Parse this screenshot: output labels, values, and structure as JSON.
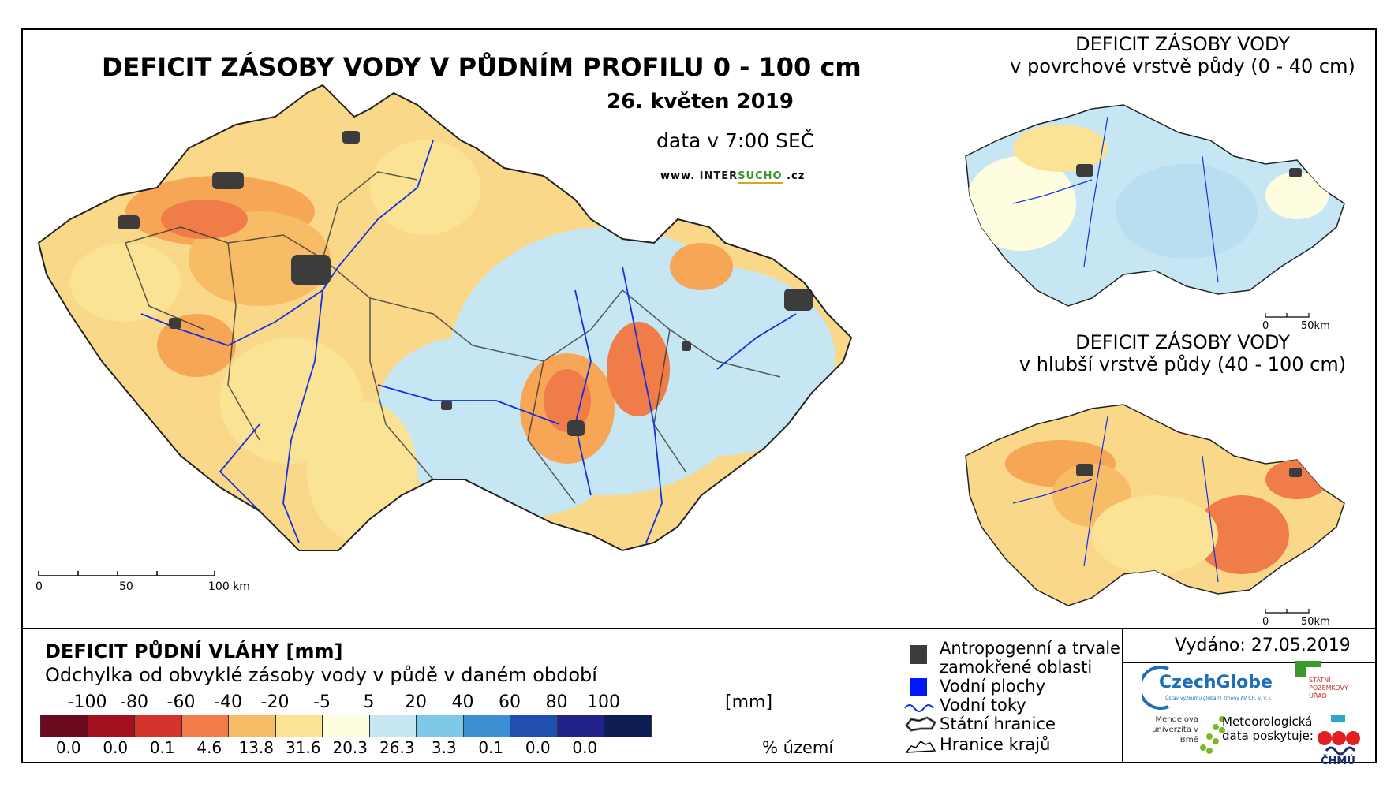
{
  "main_map": {
    "title": "DEFICIT ZÁSOBY VODY V PŮDNÍM PROFILU 0 - 100 cm",
    "date": "26. květen 2019",
    "time": "data v 7:00 SEČ",
    "website_prefix": "www.",
    "website_mid": "INTER",
    "website_highlight": "SUCHO",
    "website_suffix": ".cz",
    "scale": [
      "0",
      "50",
      "100 km"
    ]
  },
  "top_right_map": {
    "title": "DEFICIT ZÁSOBY VODY",
    "subtitle": "v povrchové vrstvě půdy (0 - 40 cm)",
    "scale": [
      "0",
      "50km"
    ]
  },
  "bottom_right_map": {
    "title": "DEFICIT ZÁSOBY VODY",
    "subtitle": "v hlubší vrstvě půdy (40 - 100 cm)",
    "scale": [
      "0",
      "50km"
    ]
  },
  "legend": {
    "title": "DEFICIT PŮDNÍ VLÁHY [mm]",
    "subtitle": "Odchylka od obvyklé zásoby vody v půdě v daném období",
    "unit": "[mm]",
    "ticks": [
      "-100",
      "-80",
      "-60",
      "-40",
      "-20",
      "-5",
      "5",
      "20",
      "40",
      "60",
      "80",
      "100"
    ],
    "colors": [
      "#6b0a1e",
      "#a3101f",
      "#d3332b",
      "#f07c4a",
      "#f8bc66",
      "#fbe396",
      "#fffde0",
      "#c6e6f3",
      "#7ec8e8",
      "#3d8fd3",
      "#1f4fb0",
      "#22228a",
      "#0e1e54"
    ],
    "percentages": [
      "0.0",
      "0.0",
      "0.1",
      "4.6",
      "13.8",
      "31.6",
      "20.3",
      "26.3",
      "3.3",
      "0.1",
      "0.0",
      "0.0"
    ],
    "pct_label": "% území"
  },
  "symbols": [
    {
      "label": "Antropogenní a trvale zamokřené oblasti",
      "icon": "dark-square-icon",
      "color": "#3c3c3c"
    },
    {
      "label": "Vodní plochy",
      "icon": "blue-square-icon",
      "color": "#0018f5"
    },
    {
      "label": "Vodní toky",
      "icon": "river-line-icon",
      "color": "#1530e0"
    },
    {
      "label": "Státní hranice",
      "icon": "state-border-icon"
    },
    {
      "label": "Hranice krajů",
      "icon": "region-border-icon"
    }
  ],
  "issue": {
    "issued": "Vydáno: 27.05.2019",
    "czechglobe": "CzechGlobe",
    "czechglobe_sub": "Ústav výzkumu globální změny AV ČR, v. v. i.",
    "spu": "STÁTNÍ POZEMKOVÝ ÚŘAD",
    "mendelu": "Mendelova univerzita v Brně",
    "meteo": "Meteorologická data poskytuje:",
    "chmu": "ČHMÚ"
  }
}
